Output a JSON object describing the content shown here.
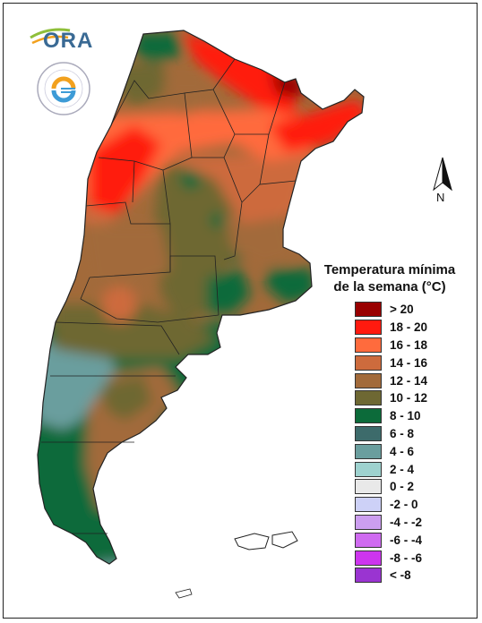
{
  "logos": {
    "ora": "ORA",
    "smn_seal": "SERVICIO METEOROLÓGICO NACIONAL ARGENTINA"
  },
  "north_arrow": {
    "label": "N"
  },
  "legend": {
    "title_line1": "Temperatura mínima",
    "title_line2": "de la semana (°C)",
    "items": [
      {
        "label": "> 20",
        "color": "#990000"
      },
      {
        "label": "18 - 20",
        "color": "#ff1a0f"
      },
      {
        "label": "16 - 18",
        "color": "#ff6b3d"
      },
      {
        "label": "14 - 16",
        "color": "#cd6b3d"
      },
      {
        "label": "12 - 14",
        "color": "#a26a3a"
      },
      {
        "label": "10 - 12",
        "color": "#6e6833"
      },
      {
        "label": "8 - 10",
        "color": "#0c6b3a"
      },
      {
        "label": "6 - 8",
        "color": "#3d6b6b"
      },
      {
        "label": "4 - 6",
        "color": "#6a9e9e"
      },
      {
        "label": "2 - 4",
        "color": "#9ed2cf"
      },
      {
        "label": "0 - 2",
        "color": "#e9e9e9"
      },
      {
        "label": "-2 - 0",
        "color": "#cdd1f7"
      },
      {
        "label": "-4 - -2",
        "color": "#cc9ef0"
      },
      {
        "label": "-6 - -4",
        "color": "#cf6bf0"
      },
      {
        "label": "-8 - -6",
        "color": "#cd35ee"
      },
      {
        "label": "< -8",
        "color": "#9a34d1"
      }
    ]
  }
}
